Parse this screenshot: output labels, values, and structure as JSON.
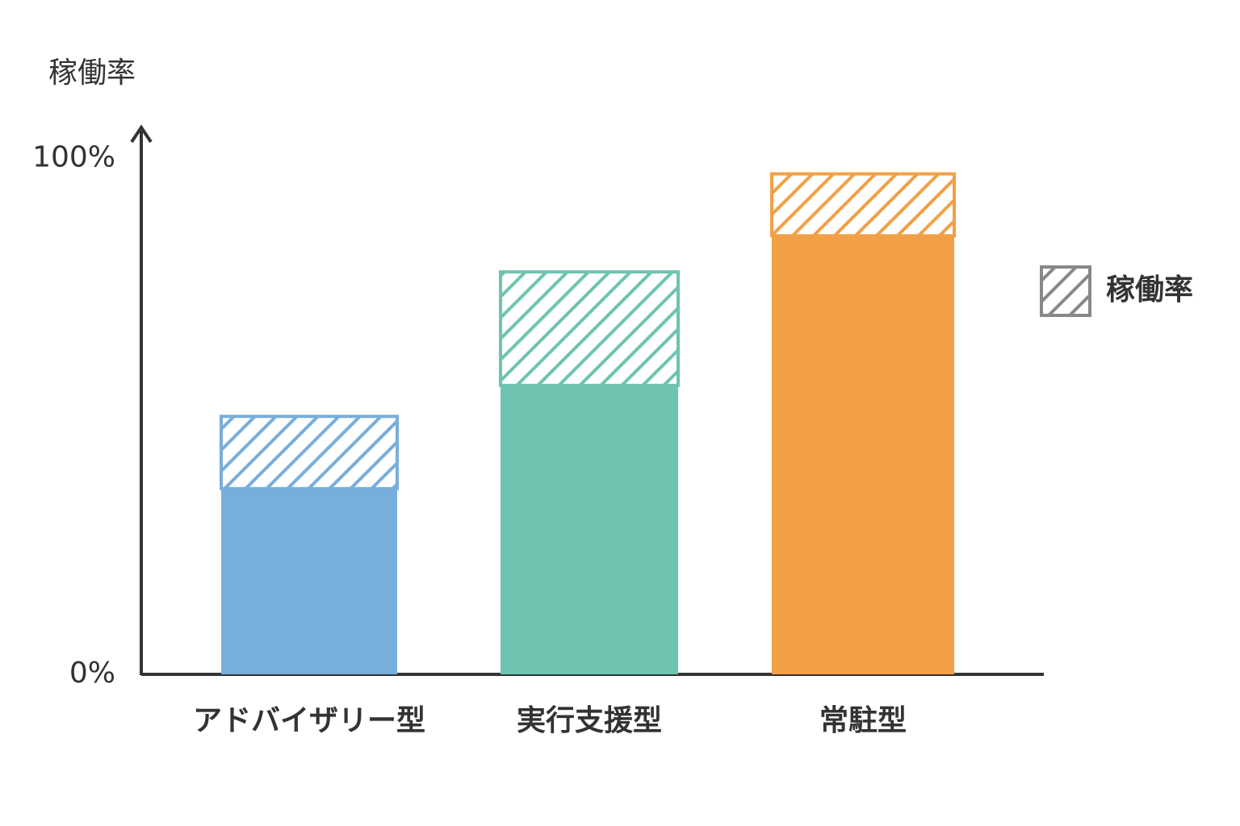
{
  "chart_data": {
    "type": "stacked_bar",
    "y_label": "稼働率",
    "categories": [
      "アドバイザリー型",
      "実行支援型",
      "常駐型"
    ],
    "colors": [
      "#78aedb",
      "#6ec4b0",
      "#f2a046"
    ],
    "series": [
      {
        "values": [
          36,
          56,
          85
        ]
      },
      {
        "name": "稼働率",
        "pattern": "hatch",
        "color": "#888888",
        "values": [
          14,
          22,
          12
        ]
      }
    ],
    "ylim": [
      0,
      106
    ],
    "yticks": [
      {
        "value": 0,
        "label": "0%"
      },
      {
        "value": 100,
        "label": "100%"
      }
    ],
    "legend": "right"
  }
}
